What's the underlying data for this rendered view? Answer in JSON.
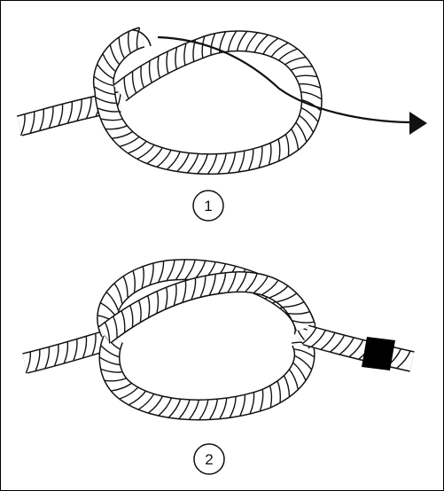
{
  "figure": {
    "steps": [
      {
        "label": "1"
      },
      {
        "label": "2"
      }
    ],
    "colors": {
      "line": "#111111",
      "rope": "#ffffff",
      "whipping": "#000000",
      "background": "#ffffff"
    },
    "icons": [
      "arrow-head-icon",
      "whipping-band-icon"
    ]
  }
}
